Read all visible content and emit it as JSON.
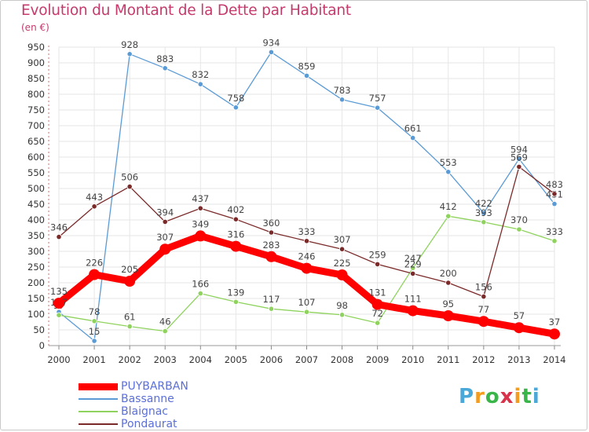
{
  "title": "Evolution du Montant de la Dette par Habitant",
  "unit_label": "(en €)",
  "brand": {
    "text": "Proxiti",
    "letter_colors": [
      "#4aa8d8",
      "#f39c1f",
      "#3ab54a",
      "#d8334a",
      "#f39c1f",
      "#3ab54a",
      "#4aa8d8"
    ]
  },
  "chart_data": {
    "type": "line",
    "title": "Evolution du Montant de la Dette par Habitant",
    "ylabel": "(en €)",
    "xlabel": "",
    "x": [
      "2000",
      "2001",
      "2002",
      "2003",
      "2004",
      "2005",
      "2006",
      "2007",
      "2008",
      "2009",
      "2010",
      "2011",
      "2012",
      "2013",
      "2014"
    ],
    "ylim": [
      0,
      950
    ],
    "yticks": [
      0,
      50,
      100,
      150,
      200,
      250,
      300,
      350,
      400,
      450,
      500,
      550,
      600,
      650,
      700,
      750,
      800,
      850,
      900,
      950
    ],
    "grid": true,
    "legend_position": "bottom-left",
    "series": [
      {
        "name": "PUYBARBAN",
        "color": "#ff0000",
        "emphasis": true,
        "values": [
          135,
          226,
          205,
          307,
          349,
          316,
          283,
          246,
          225,
          131,
          111,
          95,
          77,
          57,
          37
        ]
      },
      {
        "name": "Bassanne",
        "color": "#5b9bd5",
        "values": [
          107,
          15,
          928,
          883,
          832,
          758,
          934,
          859,
          783,
          757,
          661,
          553,
          422,
          594,
          451
        ]
      },
      {
        "name": "Blaignac",
        "color": "#8fd35e",
        "values": [
          97,
          78,
          61,
          46,
          166,
          139,
          117,
          107,
          98,
          72,
          247,
          412,
          393,
          370,
          333
        ]
      },
      {
        "name": "Pondaurat",
        "color": "#7b2a2a",
        "values": [
          346,
          443,
          506,
          394,
          437,
          402,
          360,
          333,
          307,
          259,
          229,
          200,
          156,
          569,
          483
        ]
      }
    ]
  }
}
